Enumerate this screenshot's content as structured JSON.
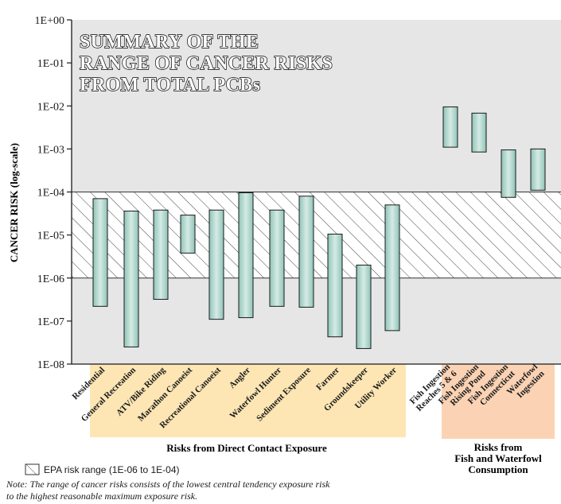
{
  "chart_data": {
    "type": "bar",
    "title_lines": [
      "SUMMARY OF THE",
      "RANGE OF CANCER RISKS",
      "FROM TOTAL PCBs"
    ],
    "ylabel": "CANCER RISK (log-scale)",
    "yscale": "log",
    "ylim": [
      1e-08,
      1
    ],
    "yticks": [
      {
        "value": 1,
        "label": "1E+00"
      },
      {
        "value": 0.1,
        "label": "1E-01"
      },
      {
        "value": 0.01,
        "label": "1E-02"
      },
      {
        "value": 0.001,
        "label": "1E-03"
      },
      {
        "value": 0.0001,
        "label": "1E-04"
      },
      {
        "value": 1e-05,
        "label": "1E-05"
      },
      {
        "value": 1e-06,
        "label": "1E-06"
      },
      {
        "value": 1e-07,
        "label": "1E-07"
      },
      {
        "value": 1e-08,
        "label": "1E-08"
      }
    ],
    "epa_range": [
      1e-06,
      0.0001
    ],
    "grid": false,
    "categories": [
      {
        "lines": [
          "Residential"
        ],
        "low": 2.2e-07,
        "high": 7e-05,
        "group": "direct"
      },
      {
        "lines": [
          "General Recreation"
        ],
        "low": 2.5e-08,
        "high": 3.6e-05,
        "group": "direct"
      },
      {
        "lines": [
          "ATV/Bike Riding"
        ],
        "low": 3.2e-07,
        "high": 3.8e-05,
        "group": "direct"
      },
      {
        "lines": [
          "Marathon Canoeist"
        ],
        "low": 3.8e-06,
        "high": 2.9e-05,
        "group": "direct"
      },
      {
        "lines": [
          "Recreational Canoeist"
        ],
        "low": 1.1e-07,
        "high": 3.8e-05,
        "group": "direct"
      },
      {
        "lines": [
          "Angler"
        ],
        "low": 1.2e-07,
        "high": 9.6e-05,
        "group": "direct"
      },
      {
        "lines": [
          "Waterfowl Hunter"
        ],
        "low": 2.2e-07,
        "high": 3.8e-05,
        "group": "direct"
      },
      {
        "lines": [
          "Sediment Exposure"
        ],
        "low": 2.1e-07,
        "high": 8e-05,
        "group": "direct"
      },
      {
        "lines": [
          "Farmer"
        ],
        "low": 4.3e-08,
        "high": 1.05e-05,
        "group": "direct"
      },
      {
        "lines": [
          "Groundskeeper"
        ],
        "low": 2.3e-08,
        "high": 2e-06,
        "group": "direct"
      },
      {
        "lines": [
          "Utility Worker"
        ],
        "low": 6e-08,
        "high": 5e-05,
        "group": "direct"
      },
      {
        "lines": [
          "Fish Ingestion",
          "Reaches 5 & 6"
        ],
        "low": 0.0011,
        "high": 0.0095,
        "group": "fish"
      },
      {
        "lines": [
          "Fish Ingestion",
          "Rising Pond"
        ],
        "low": 0.00085,
        "high": 0.0068,
        "group": "fish"
      },
      {
        "lines": [
          "Fish Ingestion",
          "Connecticut"
        ],
        "low": 7.5e-05,
        "high": 0.00095,
        "group": "fish"
      },
      {
        "lines": [
          "Waterfowl",
          "Ingestion"
        ],
        "low": 0.00011,
        "high": 0.001,
        "group": "fish"
      }
    ],
    "groups": [
      {
        "id": "direct",
        "label_lines": [
          "Risks from Direct Contact Exposure"
        ],
        "color": "#fde6b4"
      },
      {
        "id": "fish",
        "label_lines": [
          "Risks from",
          "Fish and Waterfowl",
          "Consumption"
        ],
        "color": "#fbd3b4"
      }
    ],
    "legend": "EPA risk range (1E-06 to 1E-04)",
    "legend_position": "bottom-left",
    "note_lines": [
      "Note:  The range of cancer risks consists of the lowest central tendency exposure risk",
      "to the highest reasonable maximum exposure risk."
    ],
    "colors": {
      "plot_bg": "#e6e6e6",
      "bar_light": "#cfe6df",
      "bar_dark": "#8fc4b8",
      "bar_stroke": "#1a1a1a"
    }
  }
}
